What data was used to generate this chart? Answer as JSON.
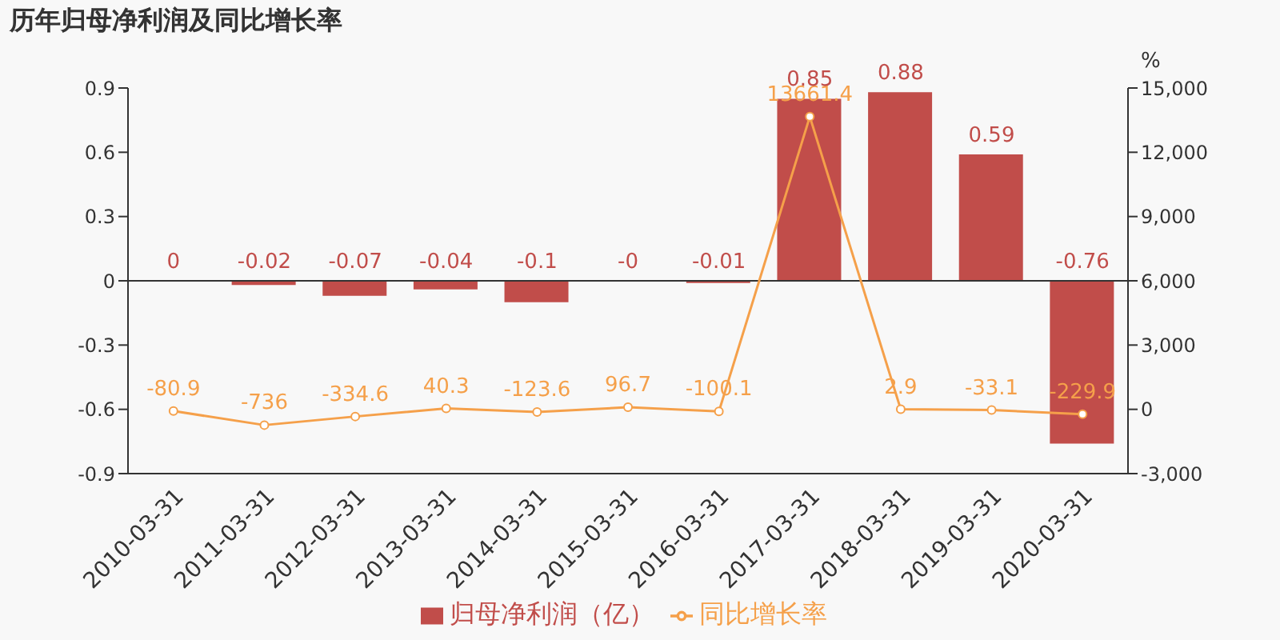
{
  "chart_data": {
    "type": "bar",
    "title": "历年归母净利润及同比增长率",
    "categories": [
      "2010-03-31",
      "2011-03-31",
      "2012-03-31",
      "2013-03-31",
      "2014-03-31",
      "2015-03-31",
      "2016-03-31",
      "2017-03-31",
      "2018-03-31",
      "2019-03-31",
      "2020-03-31"
    ],
    "series": [
      {
        "name": "归母净利润（亿）",
        "color": "#c14d4a",
        "values": [
          0,
          -0.02,
          -0.07,
          -0.04,
          -0.1,
          0,
          -0.01,
          0.85,
          0.88,
          0.59,
          -0.76
        ],
        "value_labels": [
          "0",
          "-0.02",
          "-0.07",
          "-0.04",
          "-0.1",
          "-0",
          "-0.01",
          "0.85",
          "0.88",
          "0.59",
          "-0.76"
        ]
      },
      {
        "name": "同比增长率",
        "type": "line",
        "axis": "y2",
        "color": "#f5a04a",
        "marker": "circle",
        "values": [
          -80.9,
          -736,
          -334.6,
          40.3,
          -123.6,
          96.7,
          -100.1,
          13661.4,
          2.9,
          -33.1,
          -229.9
        ],
        "value_labels": [
          "-80.9",
          "-736",
          "-334.6",
          "40.3",
          "-123.6",
          "96.7",
          "-100.1",
          "13661.4",
          "2.9",
          "-33.1",
          "-229.9"
        ]
      }
    ],
    "ylim": [
      -0.9,
      0.9
    ],
    "yticks": [
      -0.9,
      -0.6,
      -0.3,
      0,
      0.3,
      0.6,
      0.9
    ],
    "y2label": "%",
    "y2lim": [
      -3000,
      15000
    ],
    "y2ticks": [
      {
        "value": -3000,
        "label": "-3,000"
      },
      0,
      {
        "value": 3000,
        "label": "3,000"
      },
      {
        "value": 6000,
        "label": "6,000"
      },
      {
        "value": 9000,
        "label": "9,000"
      },
      {
        "value": 12000,
        "label": "12,000"
      },
      {
        "value": 15000,
        "label": "15,000"
      }
    ],
    "legend": "bottom"
  }
}
